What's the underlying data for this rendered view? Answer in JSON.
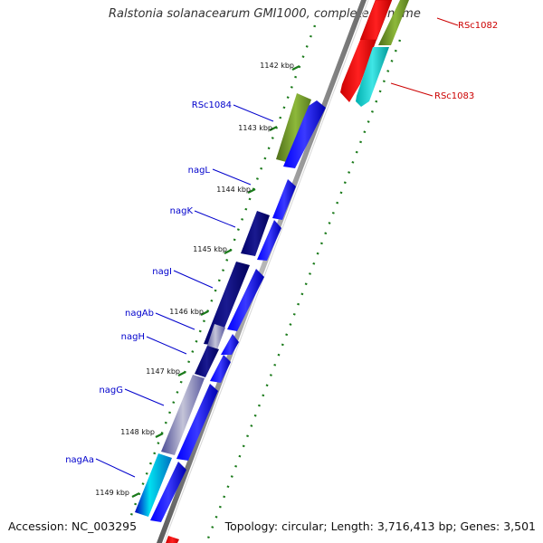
{
  "title": "Ralstonia solanacearum GMI1000, complete genome",
  "footer": {
    "accession": "Accession: NC_003295",
    "topology": "Topology: circular; Length: 3,716,413 bp; Genes: 3,501"
  },
  "colors": {
    "axis": "#8a8a8a",
    "tick": "#1a7a1a",
    "label_blue": "#0000cc",
    "label_red": "#cc0000",
    "gene_blue": "#0000ee",
    "gene_navy": "#000080",
    "gene_olive": "#6b8e23",
    "gene_red": "#ff0000",
    "gene_cyan": "#00cccc",
    "gene_slate": "#6a6aa8"
  },
  "ticks": [
    "1142 kbp",
    "1143 kbp",
    "1144 kbp",
    "1145 kbp",
    "1146 kbp",
    "1147 kbp",
    "1148 kbp",
    "1149 kbp"
  ],
  "gene_labels_left": [
    "RSc1084",
    "nagL",
    "nagK",
    "nagI",
    "nagAb",
    "nagH",
    "nagG",
    "nagAa"
  ],
  "gene_labels_right": [
    "RSc1082",
    "RSc1083"
  ]
}
